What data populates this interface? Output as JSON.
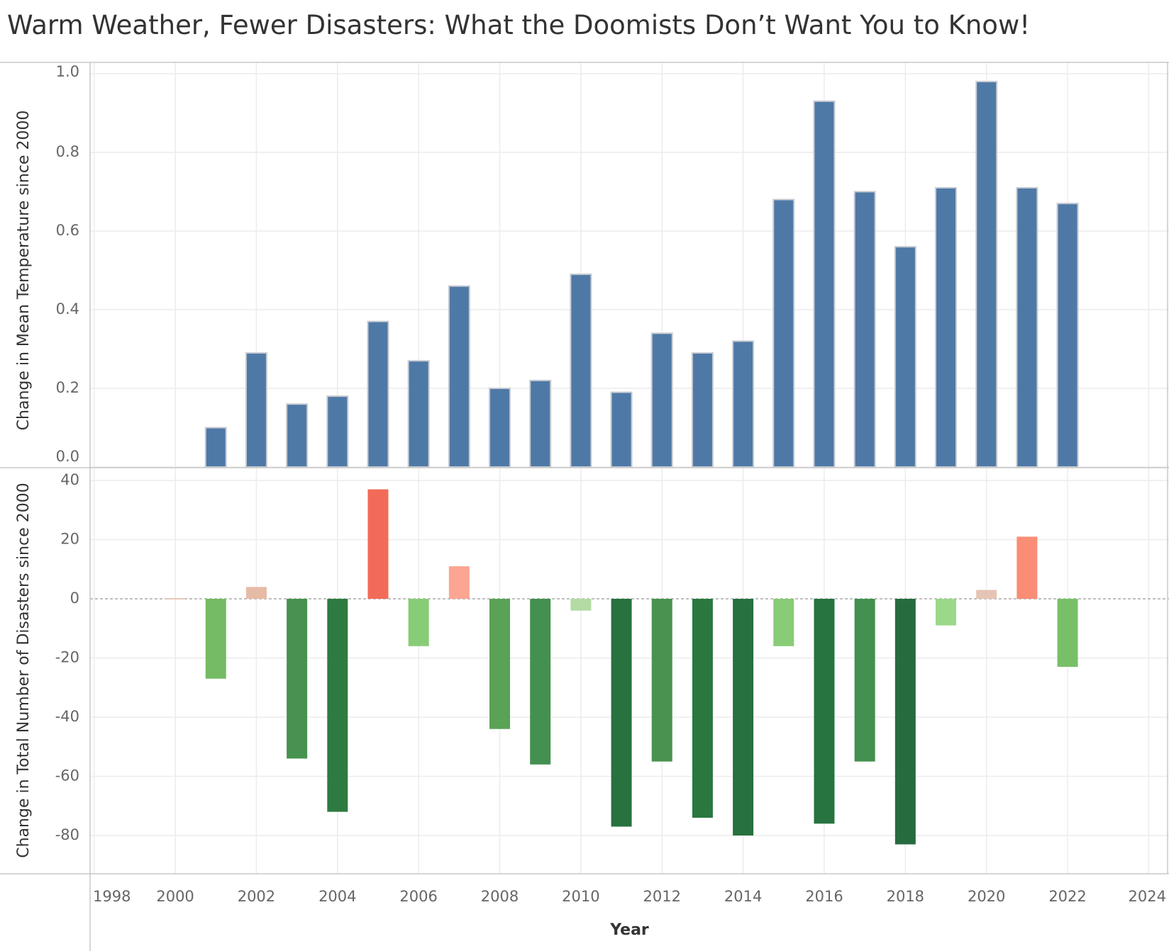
{
  "title": "Warm Weather, Fewer Disasters: What the Doomists Don’t Want You to Know!",
  "chart_data": [
    {
      "type": "bar",
      "panel": "top",
      "ylabel": "Change in Mean Temperature since 2000",
      "xlabel": "Year",
      "ylim": [
        0,
        1.0
      ],
      "yticks": [
        "0.0",
        "0.2",
        "0.4",
        "0.6",
        "0.8",
        "1.0"
      ],
      "ytick_values": [
        0,
        0.2,
        0.4,
        0.6,
        0.8,
        1.0
      ],
      "grid": true,
      "color": "#4e79a7",
      "x": [
        2001,
        2002,
        2003,
        2004,
        2005,
        2006,
        2007,
        2008,
        2009,
        2010,
        2011,
        2012,
        2013,
        2014,
        2015,
        2016,
        2017,
        2018,
        2019,
        2020,
        2021,
        2022
      ],
      "values": [
        0.1,
        0.29,
        0.16,
        0.18,
        0.37,
        0.27,
        0.46,
        0.2,
        0.22,
        0.49,
        0.19,
        0.34,
        0.29,
        0.32,
        0.68,
        0.93,
        0.7,
        0.56,
        0.71,
        0.98,
        0.71,
        0.67
      ]
    },
    {
      "type": "bar",
      "panel": "bottom",
      "ylabel": "Change in Total Number of Disasters since 2000",
      "xlabel": "Year",
      "ylim": [
        -88,
        42
      ],
      "yticks": [
        "-80",
        "-60",
        "-40",
        "-20",
        "0",
        "20",
        "40"
      ],
      "ytick_values": [
        -80,
        -60,
        -40,
        -20,
        0,
        20,
        40
      ],
      "grid": true,
      "reference_line": 0,
      "color_scale": "diverging: green for negative, red for positive",
      "x": [
        2000,
        2001,
        2002,
        2003,
        2004,
        2005,
        2006,
        2007,
        2008,
        2009,
        2010,
        2011,
        2012,
        2013,
        2014,
        2015,
        2016,
        2017,
        2018,
        2019,
        2020,
        2021,
        2022
      ],
      "values": [
        0,
        -27,
        4,
        -54,
        -72,
        37,
        -16,
        11,
        -44,
        -56,
        -4,
        -77,
        -55,
        -74,
        -80,
        -16,
        -76,
        -55,
        -83,
        -9,
        3,
        21,
        -23
      ],
      "colors": [
        "#e4c9b8",
        "#75bb64",
        "#e6bba6",
        "#479250",
        "#2e7b41",
        "#f26b58",
        "#88cc77",
        "#fba592",
        "#5aa255",
        "#449050",
        "#b3dba2",
        "#27723f",
        "#489350",
        "#2a773f",
        "#27703f",
        "#88cc77",
        "#277440",
        "#439050",
        "#266b3e",
        "#9bd88a",
        "#e6c4b4",
        "#f98d75",
        "#78c067"
      ]
    }
  ],
  "x_axis": {
    "title": "Year",
    "ticks": [
      "1998",
      "2000",
      "2002",
      "2004",
      "2006",
      "2008",
      "2010",
      "2012",
      "2014",
      "2016",
      "2018",
      "2020",
      "2022",
      "2024"
    ],
    "tick_values": [
      1998,
      2000,
      2002,
      2004,
      2006,
      2008,
      2010,
      2012,
      2014,
      2016,
      2018,
      2020,
      2022,
      2024
    ],
    "range": [
      1997.9,
      2024.5
    ]
  }
}
